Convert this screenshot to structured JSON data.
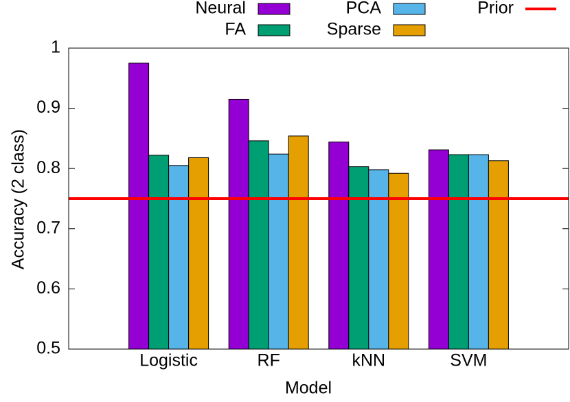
{
  "chart_data": {
    "type": "bar",
    "x_label": "Model",
    "y_label": "Accuracy (2 class)",
    "categories": [
      "Logistic",
      "RF",
      "kNN",
      "SVM"
    ],
    "series": [
      {
        "name": "Neural",
        "color": "#9400d3",
        "values": [
          0.975,
          0.915,
          0.844,
          0.831
        ]
      },
      {
        "name": "FA",
        "color": "#009e73",
        "values": [
          0.822,
          0.846,
          0.803,
          0.823
        ]
      },
      {
        "name": "PCA",
        "color": "#56b4e9",
        "values": [
          0.805,
          0.824,
          0.798,
          0.823
        ]
      },
      {
        "name": "Sparse",
        "color": "#e69f00",
        "values": [
          0.818,
          0.854,
          0.792,
          0.813
        ]
      }
    ],
    "reference_line": {
      "name": "Prior",
      "value": 0.75,
      "color": "#ff0000"
    },
    "ylim": [
      0.5,
      1
    ],
    "yticks": [
      0.5,
      0.6,
      0.7,
      0.8,
      0.9,
      1
    ],
    "grid": false
  }
}
